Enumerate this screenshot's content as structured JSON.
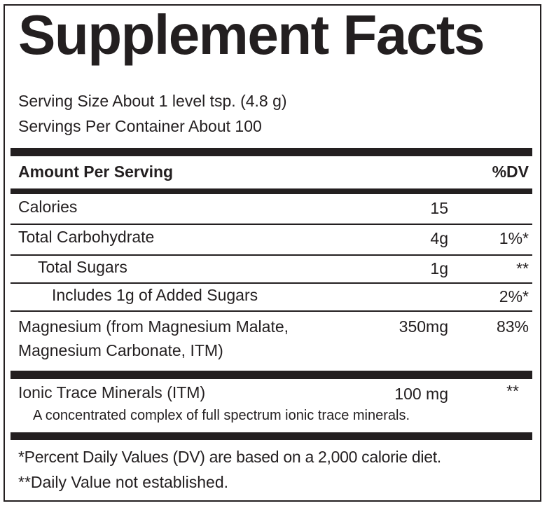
{
  "title": "Supplement Facts",
  "serving_size": "Serving Size About 1 level tsp. (4.8 g)",
  "servings_per_container": "Servings Per Container About 100",
  "header": {
    "amount_per_serving": "Amount Per Serving",
    "dv": "%DV"
  },
  "rows": [
    {
      "name": "Calories",
      "amount": "15",
      "dv": ""
    },
    {
      "name": "Total Carbohydrate",
      "amount": "4g",
      "dv": "1%*"
    },
    {
      "name": "Total Sugars",
      "amount": "1g",
      "dv": "**"
    },
    {
      "name": "Includes 1g of Added Sugars",
      "amount": "",
      "dv": "2%*"
    },
    {
      "name_line1": "Magnesium (from  Magnesium Malate,",
      "name_line2": "Magnesium Carbonate, ITM)",
      "amount": "350mg",
      "dv": "83%"
    }
  ],
  "itm": {
    "name": "Ionic Trace Minerals (ITM)",
    "amount": "100 mg",
    "dv": "**",
    "description": "A concentrated complex of full spectrum ionic trace minerals."
  },
  "footnotes": [
    "*Percent Daily Values (DV) are based on a 2,000 calorie diet.",
    "**Daily Value not established."
  ]
}
